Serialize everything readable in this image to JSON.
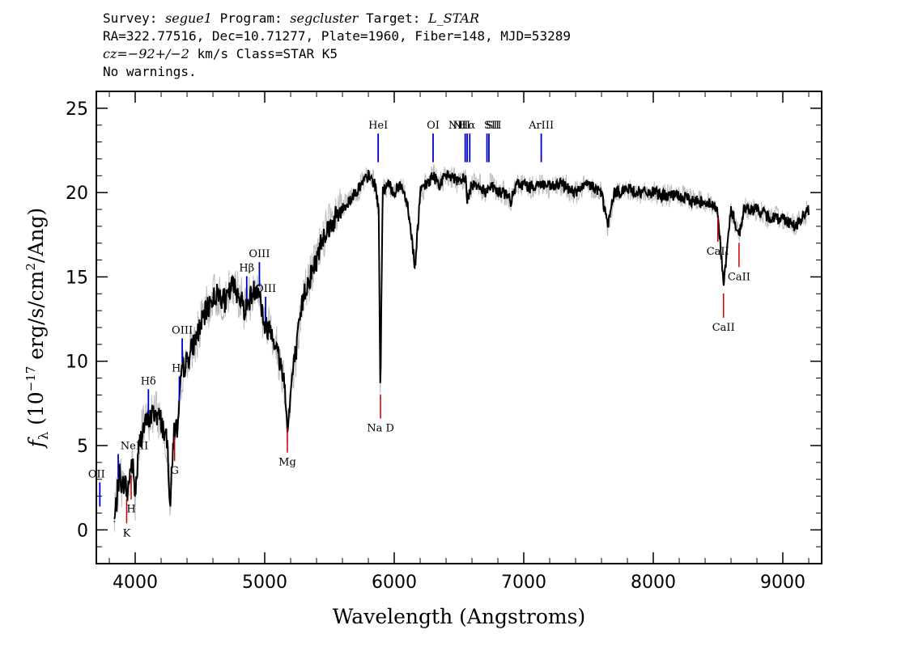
{
  "header": {
    "l1_a": "Survey: ",
    "l1_b": "segue1",
    "l1_c": " Program: ",
    "l1_d": "segcluster",
    "l1_e": " Target: ",
    "l1_f": "L_STAR",
    "l2": "RA=322.77516, Dec=10.71277, Plate=1960, Fiber=148, MJD=53289",
    "l3_a": "cz=−92+/−2",
    "l3_b": " km/s Class=STAR K5",
    "l4": "No warnings."
  },
  "chart_data": {
    "type": "line",
    "xlabel": "Wavelength (Angstroms)",
    "ylabel": "fλ (10−17 erg/s/cm2/Ang)",
    "xlim": [
      3700,
      9300
    ],
    "ylim": [
      -2,
      26
    ],
    "x_ticks": [
      4000,
      5000,
      6000,
      7000,
      8000,
      9000
    ],
    "y_ticks": [
      0,
      5,
      10,
      15,
      20,
      25
    ],
    "series": [
      {
        "color": "#000000",
        "x": [
          3840,
          3860,
          3880,
          3900,
          3920,
          3940,
          3960,
          3980,
          4000,
          4030,
          4060,
          4100,
          4150,
          4200,
          4250,
          4270,
          4300,
          4330,
          4360,
          4400,
          4450,
          4500,
          4550,
          4600,
          4650,
          4700,
          4750,
          4800,
          4850,
          4900,
          4950,
          5000,
          5050,
          5100,
          5150,
          5170,
          5185,
          5210,
          5250,
          5300,
          5350,
          5400,
          5450,
          5500,
          5550,
          5600,
          5650,
          5700,
          5750,
          5800,
          5850,
          5880,
          5893,
          5910,
          5950,
          6000,
          6050,
          6100,
          6140,
          6160,
          6200,
          6250,
          6300,
          6350,
          6400,
          6450,
          6500,
          6550,
          6563,
          6600,
          6650,
          6700,
          6750,
          6800,
          6850,
          6900,
          6950,
          7000,
          7050,
          7100,
          7150,
          7200,
          7300,
          7400,
          7500,
          7600,
          7650,
          7700,
          7800,
          7900,
          8000,
          8100,
          8200,
          8300,
          8400,
          8498,
          8542,
          8600,
          8662,
          8700,
          8800,
          8900,
          9000,
          9100,
          9200
        ],
        "values": [
          0.5,
          2.0,
          3.5,
          2.5,
          3.0,
          2.0,
          3.5,
          4.0,
          2.0,
          5.0,
          6.0,
          6.5,
          7.0,
          6.5,
          5.0,
          1.5,
          6.0,
          6.0,
          9.5,
          10.0,
          11.0,
          12.0,
          13.0,
          13.8,
          14.0,
          13.5,
          14.5,
          14.0,
          13.0,
          14.0,
          14.5,
          12.0,
          12.0,
          10.5,
          9.0,
          6.5,
          6.5,
          9.0,
          11.0,
          14.0,
          15.0,
          16.0,
          17.5,
          18.0,
          18.5,
          19.0,
          19.5,
          20.0,
          20.5,
          21.0,
          20.5,
          19.0,
          7.8,
          20.0,
          20.5,
          20.0,
          20.5,
          19.5,
          17.0,
          15.5,
          20.0,
          20.5,
          21.0,
          20.5,
          21.0,
          21.0,
          20.5,
          21.0,
          19.5,
          20.5,
          20.5,
          20.0,
          20.5,
          20.0,
          20.0,
          19.5,
          20.5,
          20.5,
          20.3,
          20.5,
          20.5,
          20.3,
          20.5,
          20.0,
          20.5,
          20.0,
          18.0,
          20.0,
          20.2,
          20.0,
          20.0,
          19.8,
          19.8,
          19.5,
          19.5,
          19.0,
          14.5,
          19.0,
          17.5,
          19.0,
          19.0,
          18.5,
          18.5,
          18.0,
          19.0
        ]
      }
    ],
    "emission_lines": [
      {
        "label": "OII",
        "wave": 3727
      },
      {
        "label": "NeIII",
        "wave": 3869
      },
      {
        "label": "Hδ",
        "wave": 4102
      },
      {
        "label": "Hγ",
        "wave": 4341
      },
      {
        "label": "OIII",
        "wave": 4363
      },
      {
        "label": "Hβ",
        "wave": 4861
      },
      {
        "label": "OIII",
        "wave": 4959
      },
      {
        "label": "OIII",
        "wave": 5007
      },
      {
        "label": "HeI",
        "wave": 5876
      },
      {
        "label": "OI",
        "wave": 6300
      },
      {
        "label": "NII",
        "wave": 6548
      },
      {
        "label": "Hα",
        "wave": 6563
      },
      {
        "label": "NII",
        "wave": 6583
      },
      {
        "label": "SII",
        "wave": 6716
      },
      {
        "label": "SII",
        "wave": 6731
      },
      {
        "label": "ArIII",
        "wave": 7135
      }
    ],
    "absorption_lines": [
      {
        "label": "K",
        "wave": 3934
      },
      {
        "label": "H",
        "wave": 3969
      },
      {
        "label": "G",
        "wave": 4304
      },
      {
        "label": "Mg",
        "wave": 5175
      },
      {
        "label": "Na D",
        "wave": 5894
      },
      {
        "label": "CaII",
        "wave": 8498
      },
      {
        "label": "CaII",
        "wave": 8542
      },
      {
        "label": "CaII",
        "wave": 8662
      }
    ],
    "colors": {
      "flux": "#000000",
      "error": "#bbbbbb",
      "emission": "#0000cc",
      "absorption": "#cc0000",
      "frame": "#000000"
    }
  }
}
